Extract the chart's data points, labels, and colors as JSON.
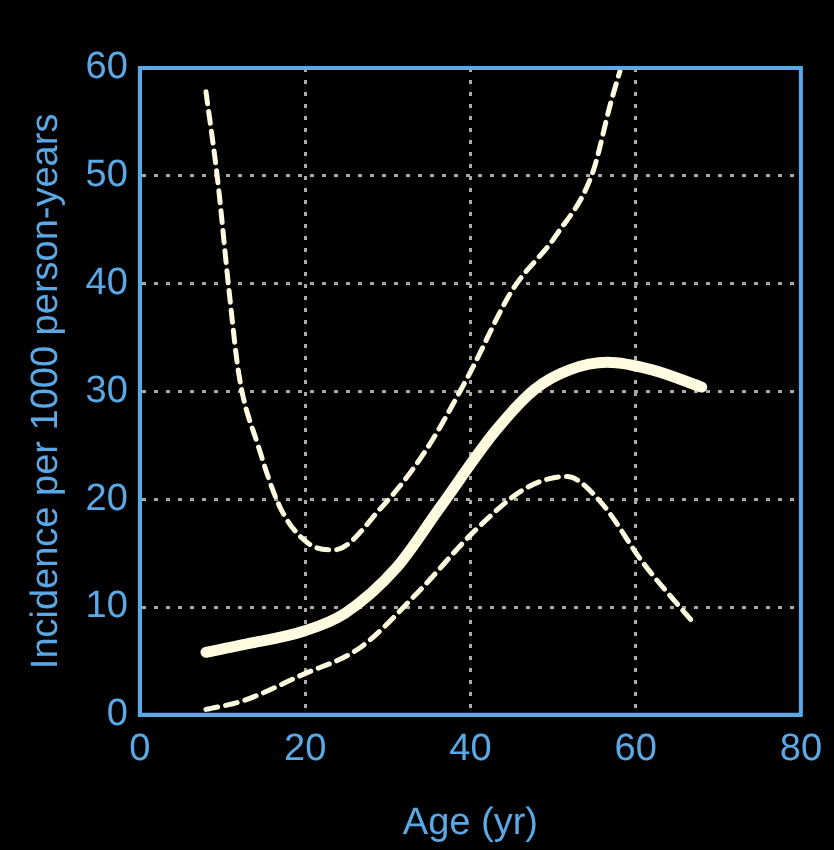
{
  "chart_data": {
    "type": "line",
    "xlabel": "Age (yr)",
    "ylabel": "Incidence per 1000 person-years",
    "xlim": [
      0,
      80
    ],
    "xticks": [
      0,
      20,
      40,
      60,
      80
    ],
    "ylim": [
      0,
      60
    ],
    "yticks": [
      0,
      10,
      20,
      30,
      40,
      50,
      60
    ],
    "grid": true,
    "legend": false,
    "marker": "none",
    "series": [
      {
        "color": "#fffbe0",
        "line_style": "solid",
        "x": [
          8,
          12.5,
          20,
          24.8,
          31,
          36.3,
          43,
          47.8,
          52,
          56.6,
          62,
          68
        ],
        "values": [
          5.8,
          6.5,
          7.8,
          9.4,
          13.6,
          19.2,
          26.3,
          30.2,
          32,
          32.7,
          32,
          30.4
        ]
      },
      {
        "color": "#fffbe0",
        "line_style": "dashed",
        "x": [
          8,
          9.4,
          10.8,
          12,
          14.3,
          17,
          20.4,
          23.5,
          29.2,
          34.5,
          39.8,
          45,
          50.4,
          54.8,
          57,
          58.1
        ],
        "values": [
          57.8,
          49.7,
          39.3,
          31.5,
          25,
          19.2,
          15.9,
          15.3,
          19.2,
          24.4,
          31.5,
          39.3,
          44.5,
          50.3,
          56.8,
          59.7
        ]
      },
      {
        "color": "#fffbe0",
        "line_style": "dashed",
        "x": [
          8,
          12.5,
          19.6,
          26.6,
          33.7,
          40.7,
          46.9,
          51.7,
          55.7,
          61,
          66.7
        ],
        "values": [
          0.5,
          1.3,
          3.7,
          6.2,
          11.4,
          17.2,
          21.1,
          22.1,
          19.8,
          14,
          8.8
        ]
      }
    ]
  }
}
